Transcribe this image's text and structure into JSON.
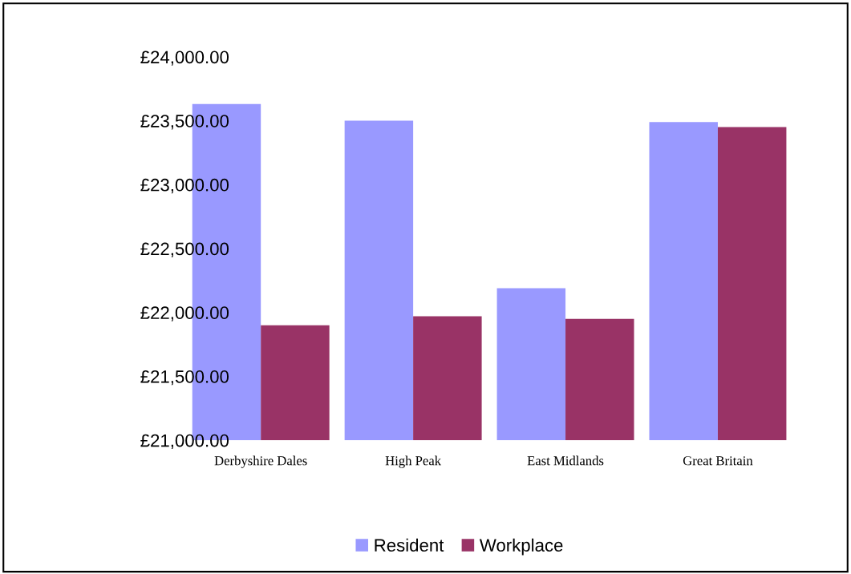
{
  "chart_data": {
    "type": "bar",
    "categories": [
      "Derbyshire Dales",
      "High Peak",
      "East Midlands",
      "Great Britain"
    ],
    "series": [
      {
        "name": "Resident",
        "color": "#9999ff",
        "values": [
          23630,
          23500,
          22190,
          23490
        ]
      },
      {
        "name": "Workplace",
        "color": "#993366",
        "values": [
          21900,
          21970,
          21950,
          23450
        ]
      }
    ],
    "ylim": [
      21000,
      24000
    ],
    "yticks": [
      {
        "value": 21000,
        "label": "£21,000.00"
      },
      {
        "value": 21500,
        "label": "£21,500.00"
      },
      {
        "value": 22000,
        "label": "£22,000.00"
      },
      {
        "value": 22500,
        "label": "£22,500.00"
      },
      {
        "value": 23000,
        "label": "£23,000.00"
      },
      {
        "value": 23500,
        "label": "£23,500.00"
      },
      {
        "value": 24000,
        "label": "£24,000.00"
      }
    ],
    "grid": false,
    "legend": "bottom"
  }
}
